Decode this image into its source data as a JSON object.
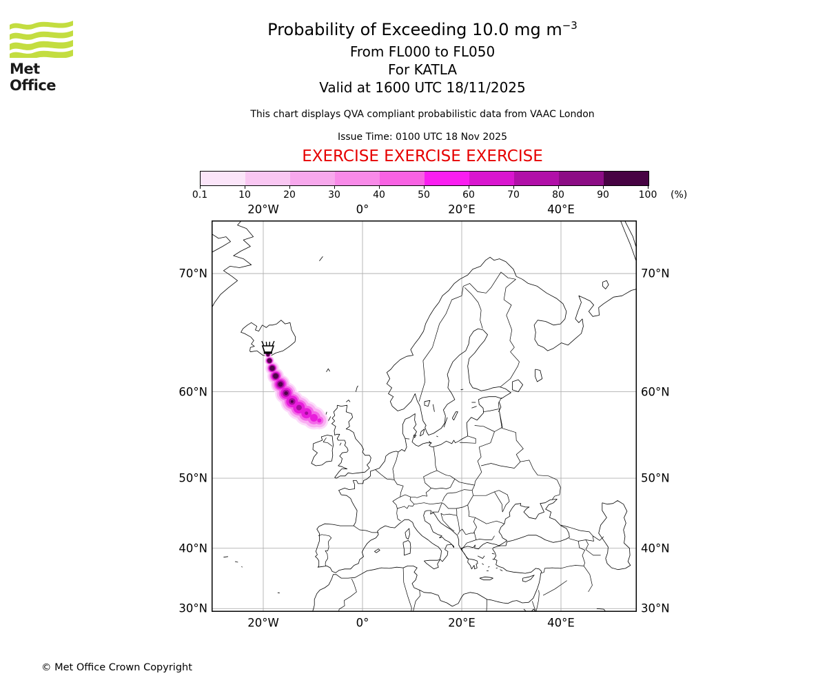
{
  "logo": {
    "text": "Met Office",
    "green": "#c3dd40"
  },
  "header": {
    "title_prefix": "Probability of Exceeding 10.0 mg m",
    "title_exponent": "−3",
    "subtitle1": "From FL000 to FL050",
    "subtitle2": "For KATLA",
    "subtitle3": "Valid at 1600 UTC 18/11/2025",
    "qva_note": "This chart displays QVA compliant probabilistic data from VAAC London",
    "issue_time": "Issue Time: 0100 UTC 18 Nov 2025",
    "exercise_banner": "EXERCISE EXERCISE EXERCISE",
    "exercise_color": "#e60000"
  },
  "colorbar": {
    "tick_labels": [
      "0.1",
      "10",
      "20",
      "30",
      "40",
      "50",
      "60",
      "70",
      "80",
      "90",
      "100"
    ],
    "unit_label": "(%)",
    "colors": [
      "#fbe5f9",
      "#f9c7f2",
      "#f7a8ec",
      "#f88ae8",
      "#f862e3",
      "#fa1ef0",
      "#d916cf",
      "#b110a8",
      "#8c0d85",
      "#470343"
    ]
  },
  "map": {
    "grid_color": "#b0b0b0",
    "axis_top": [
      "20°W",
      "0°",
      "20°E",
      "40°E"
    ],
    "axis_bottom": [
      "20°W",
      "0°",
      "20°E",
      "40°E"
    ],
    "axis_left": [
      "70°N",
      "60°N",
      "50°N",
      "40°N",
      "30°N"
    ],
    "axis_right": [
      "70°N",
      "60°N",
      "50°N",
      "40°N",
      "30°N"
    ]
  },
  "footer": {
    "copyright": "© Met Office Crown Copyright"
  },
  "chart_data": {
    "type": "map-probability-plume",
    "projection": "mercator",
    "extent": {
      "lon_min": -30.4,
      "lon_max": 55.3,
      "lat_min": 29.5,
      "lat_max": 73.4
    },
    "grid_lons": [
      -20,
      0,
      20,
      40
    ],
    "grid_lats": [
      70,
      60,
      50,
      40,
      30
    ],
    "legend_bins_percent": [
      0.1,
      10,
      20,
      30,
      40,
      50,
      60,
      70,
      80,
      90,
      100
    ],
    "volcano": {
      "name": "KATLA",
      "lon": -19.05,
      "lat": 63.72
    },
    "plume": {
      "points": [
        [
          -19.05,
          63.55
        ],
        [
          -18.75,
          63.0
        ],
        [
          -18.2,
          62.3
        ],
        [
          -17.5,
          61.55
        ],
        [
          -16.55,
          60.75
        ],
        [
          -15.4,
          59.85
        ],
        [
          -14.2,
          59.0
        ],
        [
          -12.8,
          58.35
        ],
        [
          -11.3,
          57.75
        ],
        [
          -9.8,
          57.25
        ],
        [
          -8.7,
          56.95
        ]
      ],
      "layers": [
        {
          "color": "#fcdcfa",
          "radii": [
            5,
            7,
            10,
            12,
            14,
            16,
            17,
            18,
            18,
            17,
            13
          ]
        },
        {
          "color": "#f9aff2",
          "radii": [
            4,
            6,
            8,
            10,
            12,
            13.5,
            14.5,
            15,
            15,
            14,
            10
          ]
        },
        {
          "color": "#f468e8",
          "radii": [
            3.5,
            5,
            6.5,
            8,
            9.5,
            10.5,
            11,
            11.5,
            11,
            9.5,
            6
          ]
        },
        {
          "color": "#e81ddb",
          "radii": [
            3,
            4.5,
            5.5,
            6.5,
            7.5,
            8,
            8.5,
            8.5,
            7.5,
            5.5,
            3
          ]
        },
        {
          "color": "#a50c9d",
          "radii": [
            2.8,
            4,
            4.8,
            5.2,
            5.4,
            5.2,
            4.8,
            4,
            2.5,
            0,
            0
          ]
        },
        {
          "color": "#4f0549",
          "radii": [
            2.4,
            3.2,
            3.6,
            3.8,
            3.4,
            2.8,
            2,
            0,
            0,
            0,
            0
          ]
        }
      ]
    }
  }
}
